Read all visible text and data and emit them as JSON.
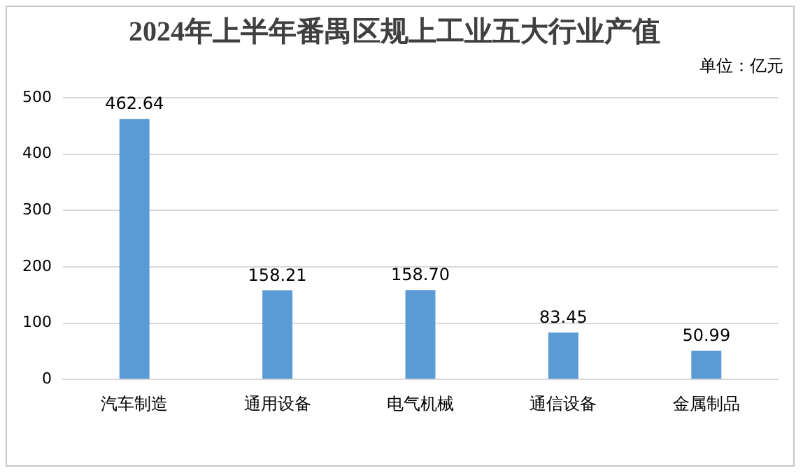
{
  "chart_data": {
    "type": "bar",
    "title": "2024年上半年番禺区规上工业五大行业产值",
    "annotations": [
      "单位：亿元"
    ],
    "categories": [
      "汽车制造",
      "通用设备",
      "电气机械",
      "通信设备",
      "金属制品"
    ],
    "values": [
      462.64,
      158.21,
      158.7,
      83.45,
      50.99
    ],
    "value_labels": [
      "462.64",
      "158.21",
      "158.70",
      "83.45",
      "50.99"
    ],
    "color": "#5b9bd5",
    "ylim": [
      0,
      500
    ],
    "yticks": [
      0,
      100,
      200,
      300,
      400,
      500
    ],
    "grid": "y"
  }
}
